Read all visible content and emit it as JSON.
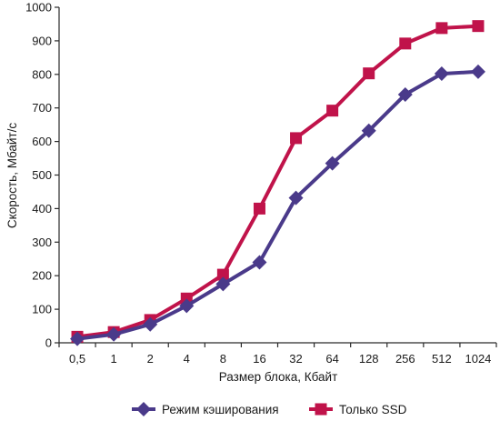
{
  "chart_data": {
    "type": "line",
    "categories": [
      "0,5",
      "1",
      "2",
      "4",
      "8",
      "16",
      "32",
      "64",
      "128",
      "256",
      "512",
      "1024"
    ],
    "series": [
      {
        "name": "Режим кэширования",
        "values": [
          12,
          25,
          55,
          110,
          175,
          240,
          432,
          535,
          632,
          740,
          802,
          808
        ],
        "color": "#4a3a8a",
        "marker": "diamond"
      },
      {
        "name": "Только SSD",
        "values": [
          18,
          32,
          68,
          132,
          203,
          400,
          610,
          692,
          803,
          892,
          938,
          944
        ],
        "color": "#c0134a",
        "marker": "square"
      }
    ],
    "title": "",
    "xlabel": "Размер блока, Кбайт",
    "ylabel": "Скорость, Мбайт/с",
    "ylim": [
      0,
      1000
    ],
    "yticks": [
      0,
      100,
      200,
      300,
      400,
      500,
      600,
      700,
      800,
      900,
      1000
    ],
    "grid": false,
    "legend": "bottom"
  }
}
